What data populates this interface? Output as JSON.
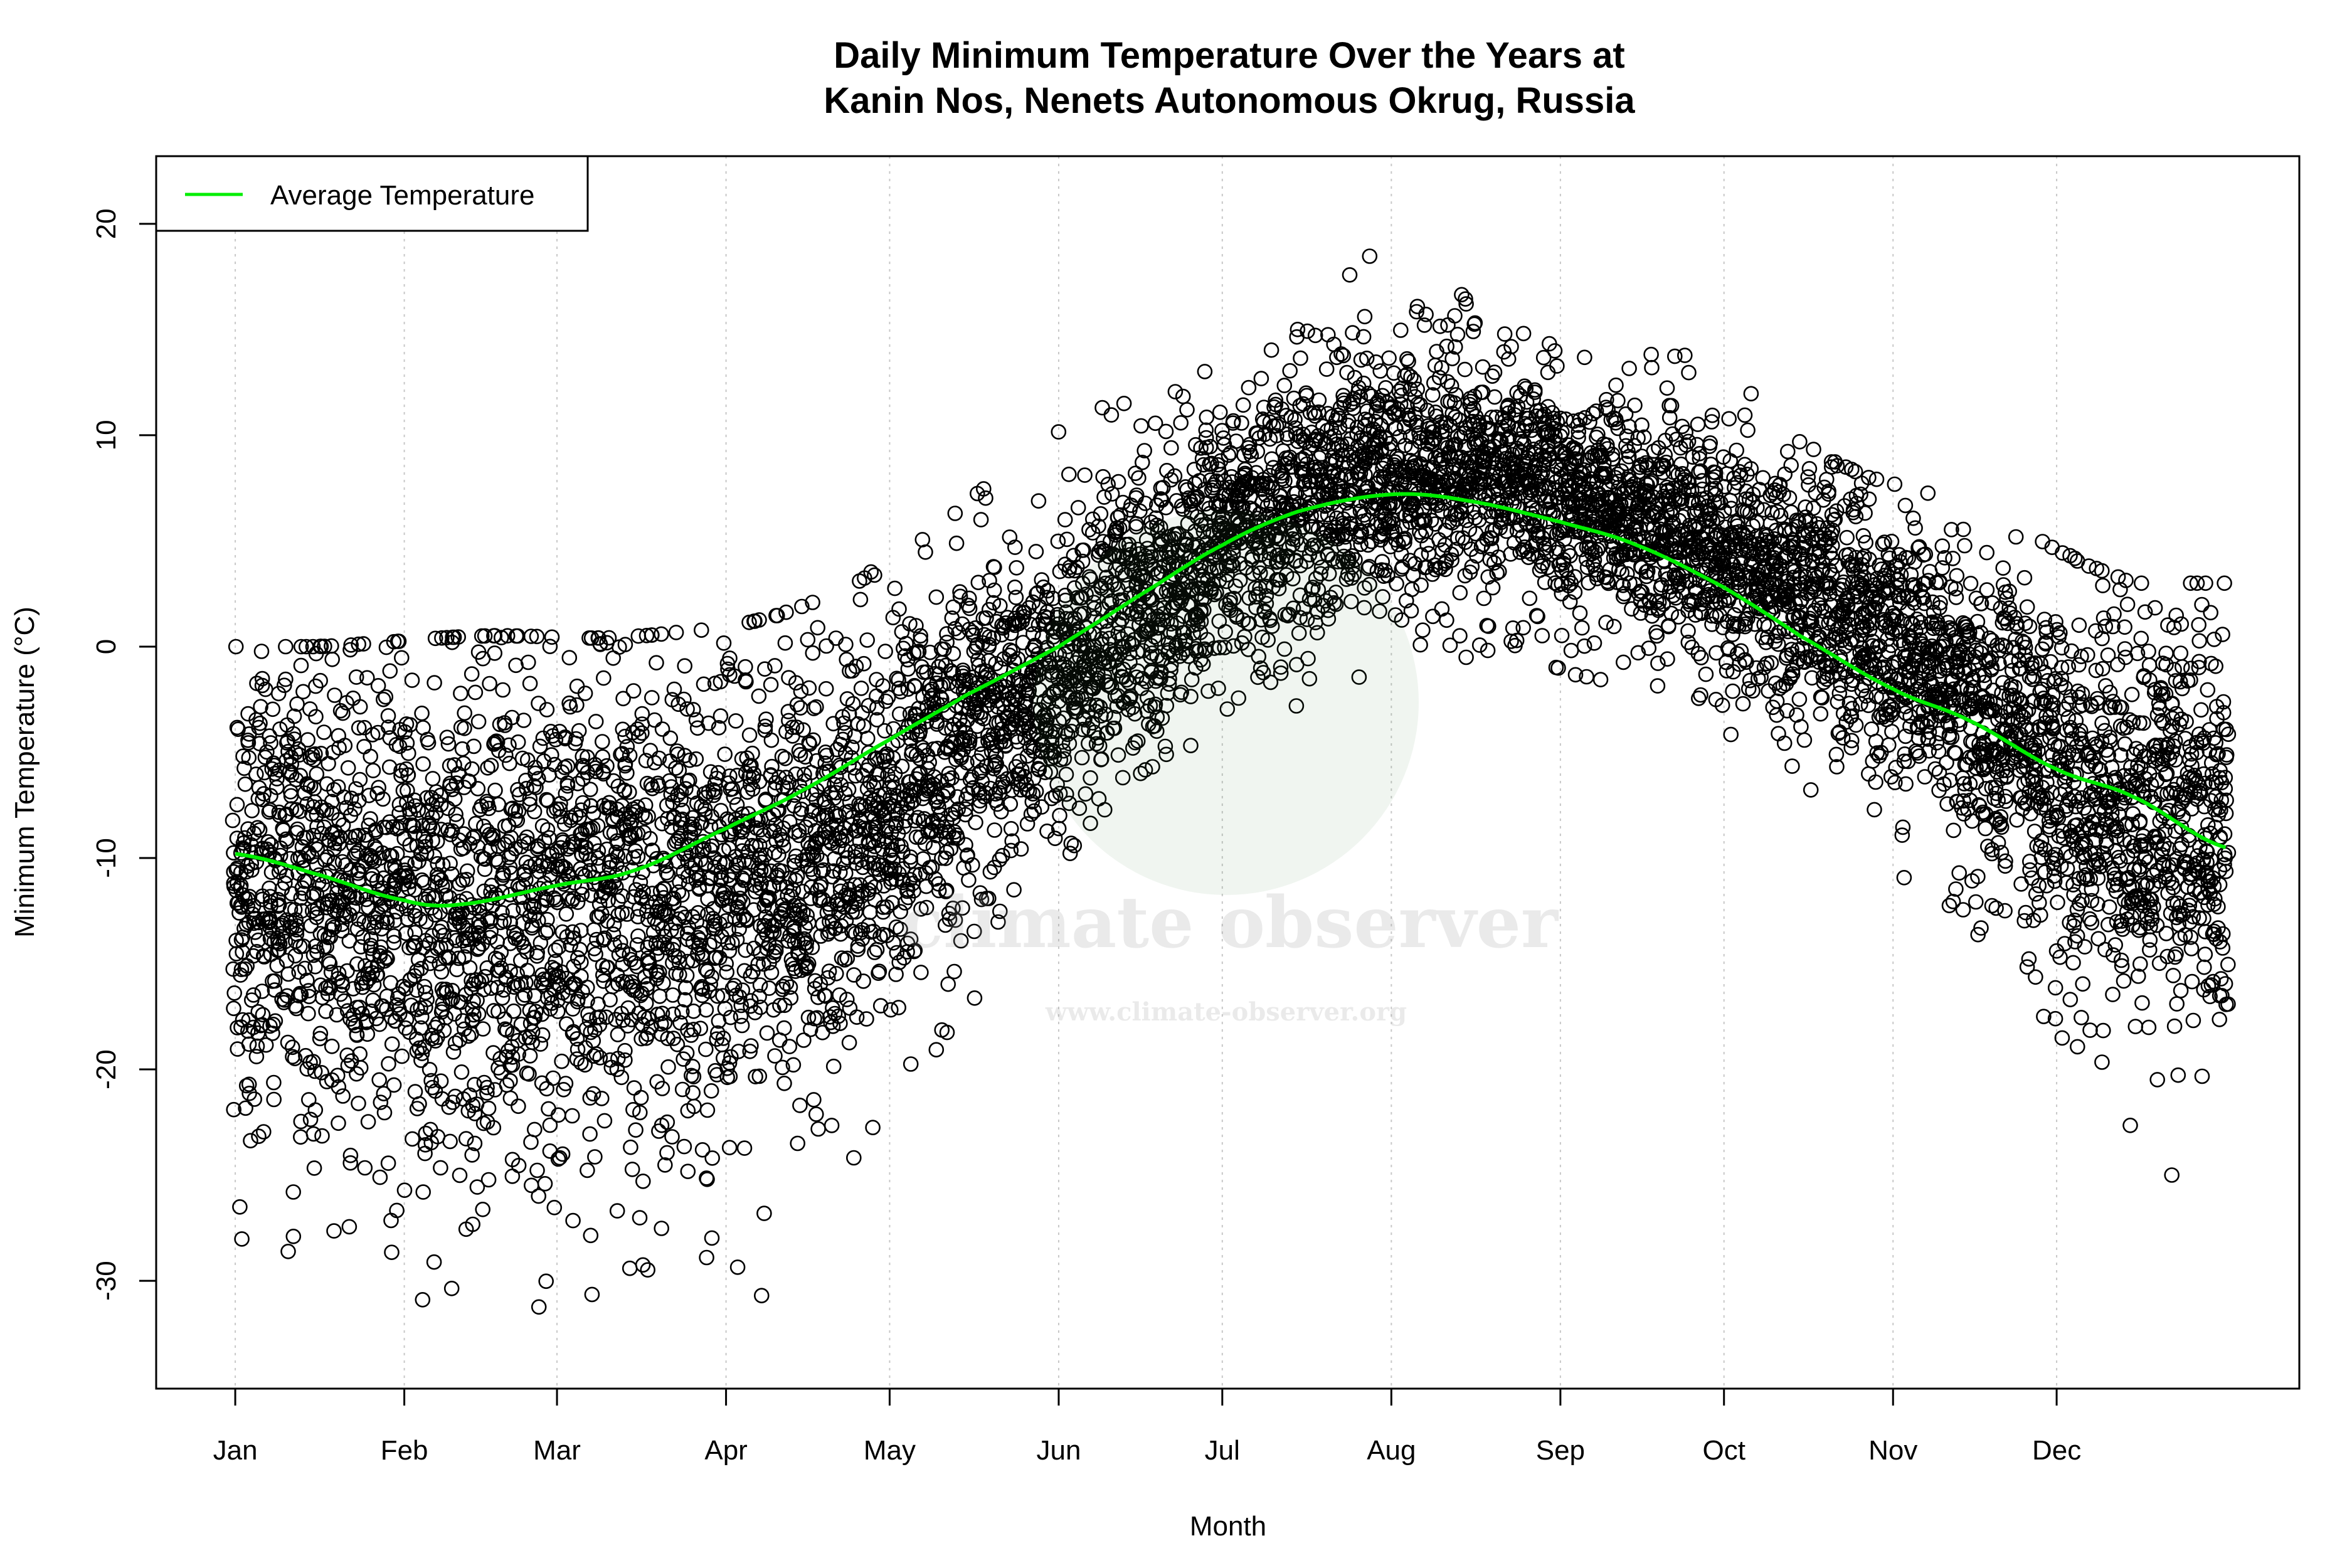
{
  "chart_data": {
    "type": "scatter",
    "title_line1": "Daily Minimum Temperature Over the Years at",
    "title_line2": "Kanin Nos, Nenets Autonomous Okrug, Russia",
    "xlabel": "Month",
    "ylabel": "Minimum Temperature (°C)",
    "xlim_day_of_year": [
      -13.5,
      379.5
    ],
    "ylim": [
      -35.1,
      23.2
    ],
    "grid": "vertical dotted lines at month ticks",
    "legend_placement": "top-left",
    "x_ticks": [
      {
        "label": "Jan",
        "day": 1
      },
      {
        "label": "Feb",
        "day": 32
      },
      {
        "label": "Mar",
        "day": 60
      },
      {
        "label": "Apr",
        "day": 91
      },
      {
        "label": "May",
        "day": 121
      },
      {
        "label": "Jun",
        "day": 152
      },
      {
        "label": "Jul",
        "day": 182
      },
      {
        "label": "Aug",
        "day": 213
      },
      {
        "label": "Sep",
        "day": 244
      },
      {
        "label": "Oct",
        "day": 274
      },
      {
        "label": "Nov",
        "day": 305
      },
      {
        "label": "Dec",
        "day": 335
      }
    ],
    "y_ticks": [
      20,
      10,
      0,
      -10,
      -20,
      -30
    ],
    "colors": {
      "points": "#000000",
      "average_line": "#00ee00",
      "grid": "#c8c8c8"
    },
    "series": [
      {
        "name": "Average Temperature",
        "type": "line",
        "color": "#00ee00",
        "day": [
          1,
          15,
          32,
          42,
          60,
          74,
          91,
          105,
          121,
          135,
          152,
          166,
          182,
          196,
          213,
          227,
          244,
          258,
          274,
          288,
          305,
          319,
          335,
          349,
          366
        ],
        "value": [
          -9.8,
          -10.7,
          -12.0,
          -12.2,
          -11.3,
          -10.6,
          -8.6,
          -6.8,
          -4.4,
          -2.3,
          0.0,
          2.3,
          4.8,
          6.4,
          7.2,
          6.9,
          5.9,
          4.8,
          2.8,
          0.5,
          -2.0,
          -3.5,
          -5.8,
          -7.1,
          -9.5
        ]
      }
    ],
    "scatter_points_summary": {
      "description_of_marks": "open circles, one per day per year",
      "months": [
        "Jan",
        "Feb",
        "Mar",
        "Apr",
        "May",
        "Jun",
        "Jul",
        "Aug",
        "Sep",
        "Oct",
        "Nov",
        "Dec"
      ],
      "dense_band_low": [
        -22,
        -24,
        -23,
        -20,
        -12,
        -4,
        1,
        3,
        1,
        -3,
        -9,
        -18
      ],
      "dense_band_high": [
        -1,
        -1,
        -1,
        0,
        3,
        8,
        13,
        13,
        11,
        8,
        4,
        1
      ],
      "observed_min": [
        -32,
        -33,
        -33,
        -29,
        -17,
        -6,
        -6,
        -4.7,
        -1.5,
        -9.7,
        -17.7,
        -30
      ],
      "observed_max": [
        0,
        0.5,
        0.5,
        2,
        7,
        16.5,
        19.3,
        21,
        17.5,
        9.5,
        6.5,
        3
      ]
    }
  },
  "watermark": {
    "name": "climate observer",
    "url": "www.climate-observer.org"
  }
}
